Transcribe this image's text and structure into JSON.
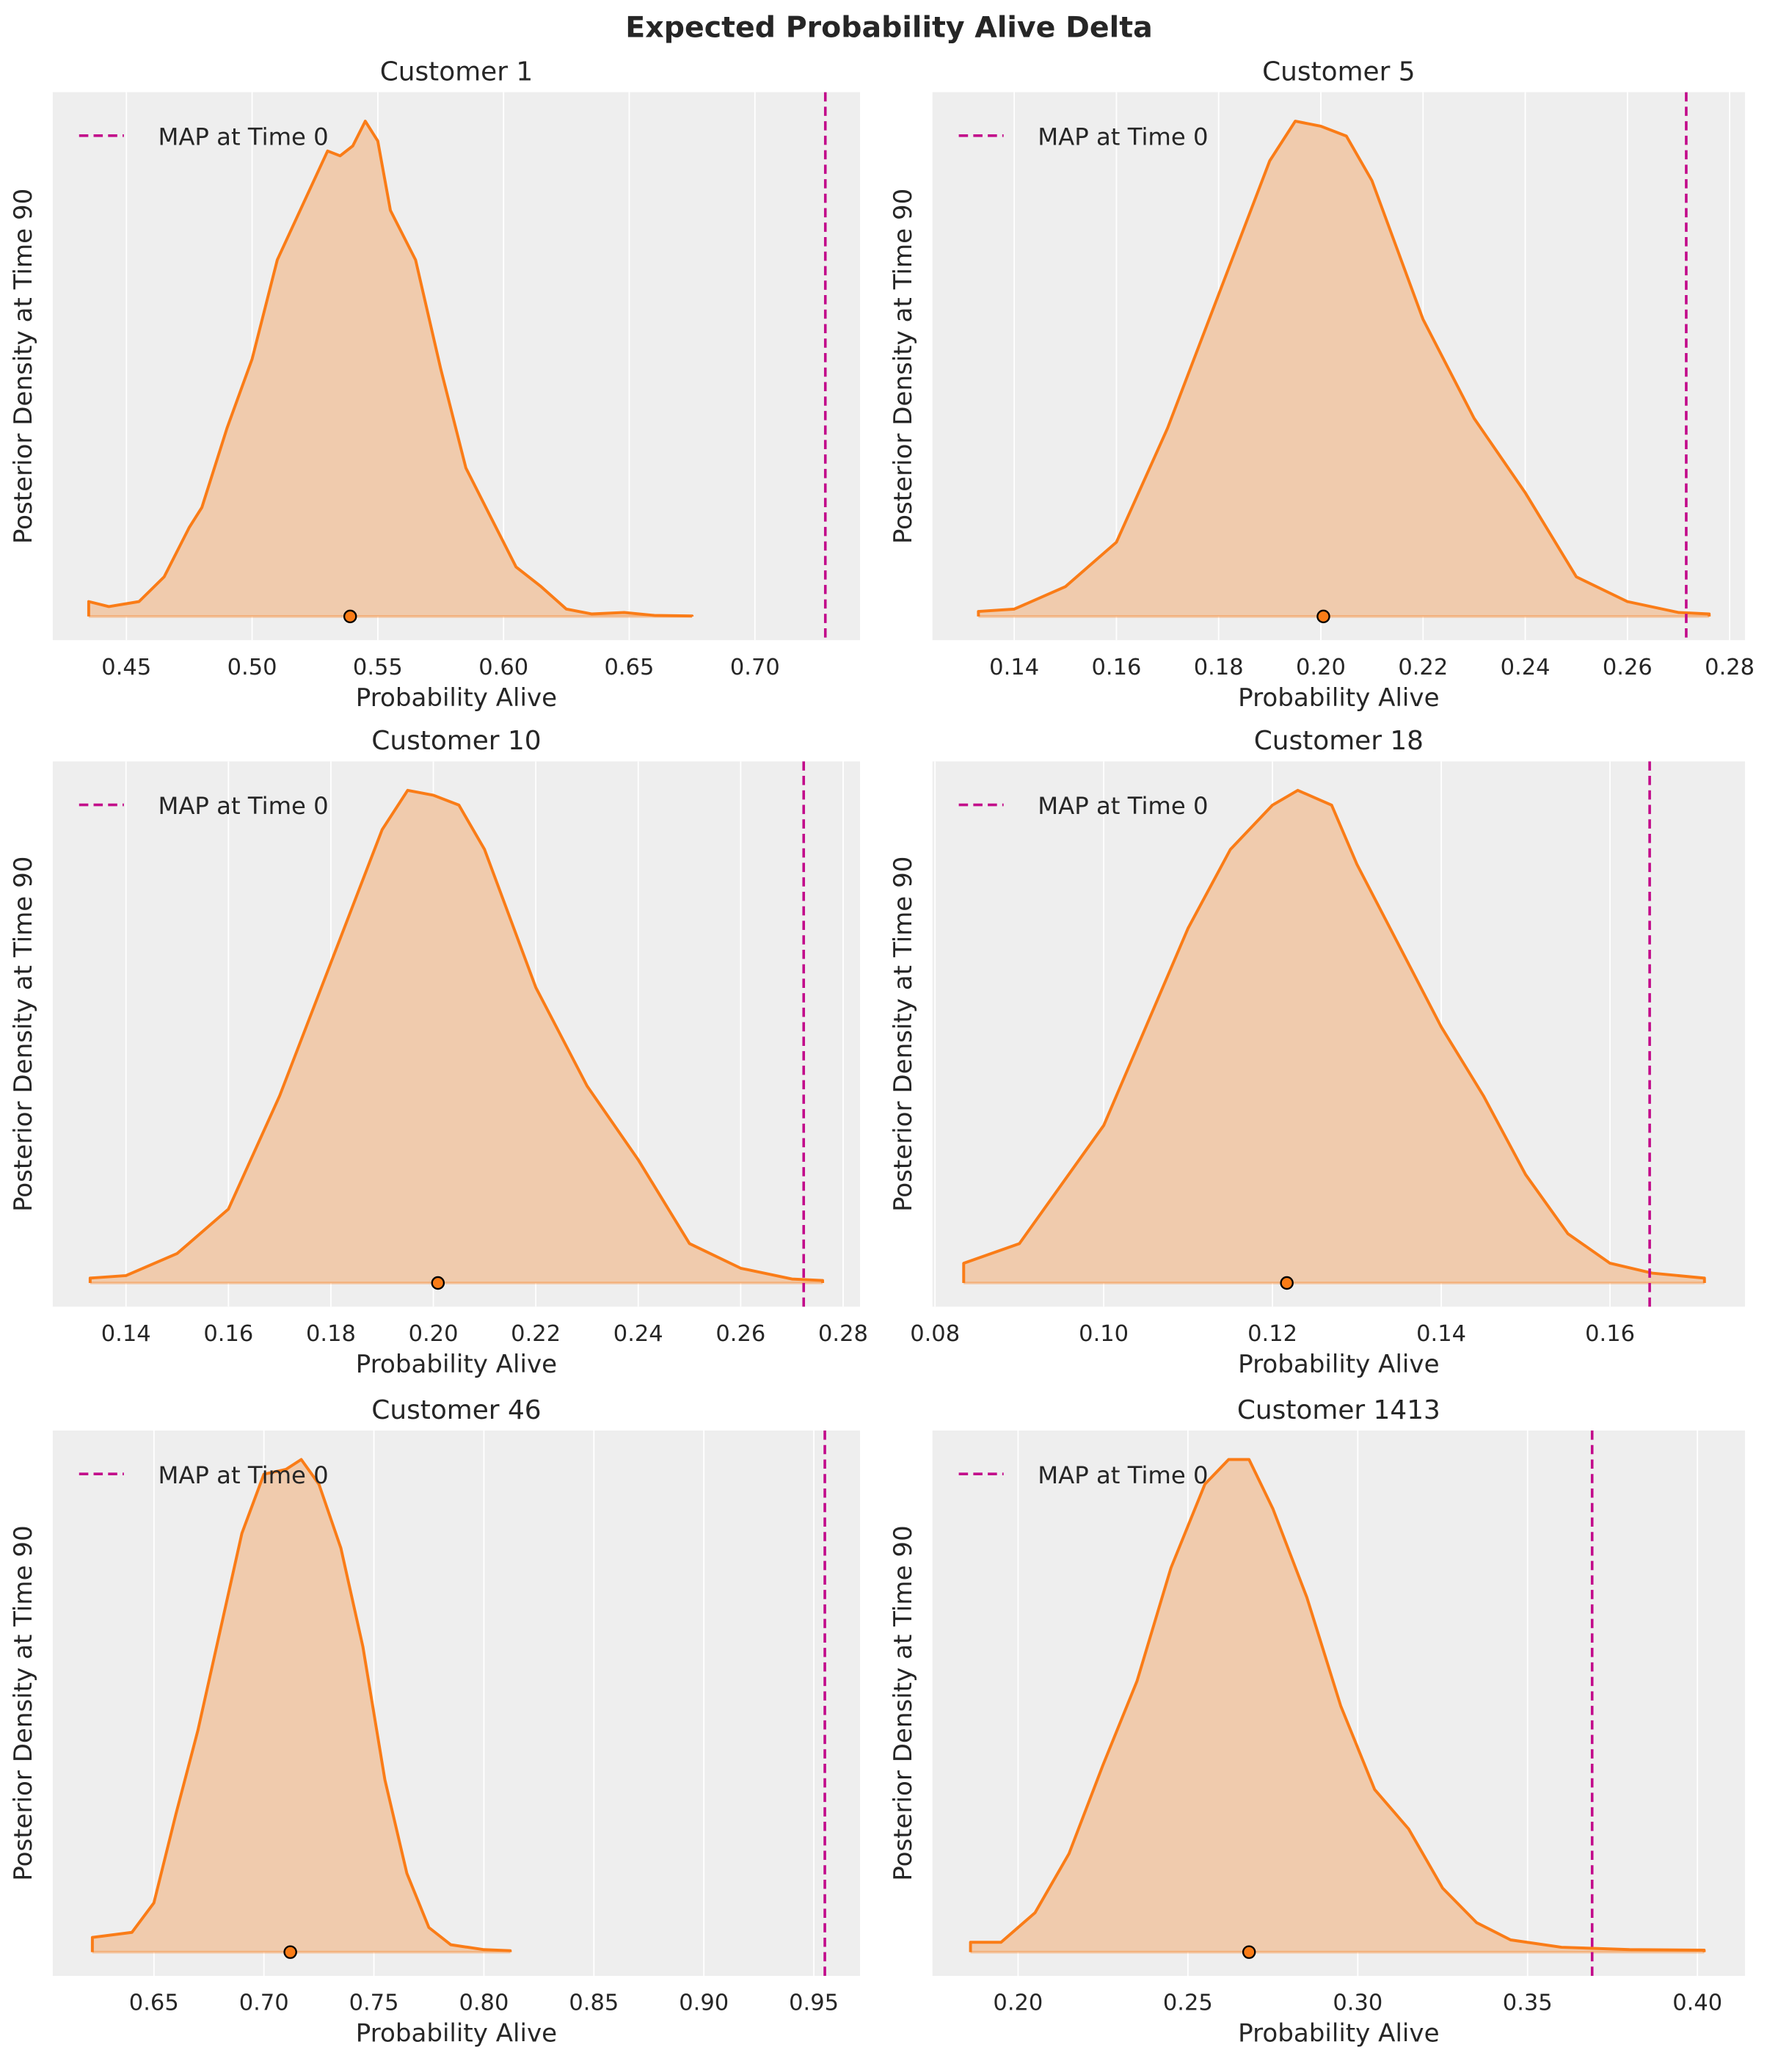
{
  "title": "Expected Probability Alive Delta",
  "colors": {
    "background": "#eeeeee",
    "grid": "#ffffff",
    "kde_line": "#fa7c17",
    "kde_fill": "#f0cbad",
    "map_line": "#c20a8a",
    "point_edge": "#000000"
  },
  "chart_data": [
    {
      "type": "area",
      "title": "Customer 1",
      "xlabel": "Probability Alive",
      "ylabel": "Posterior Density at Time 90",
      "legend": "MAP at Time 0",
      "legend_position": "top-left",
      "grid": true,
      "xlim": [
        0.4207,
        0.7418
      ],
      "xticks": [
        "0.45",
        "0.50",
        "0.55",
        "0.60",
        "0.65",
        "0.70"
      ],
      "map_value": 0.728,
      "point_estimate": 0.539,
      "density": [
        [
          0.435,
          0.03
        ],
        [
          0.443,
          0.02
        ],
        [
          0.455,
          0.03
        ],
        [
          0.465,
          0.08
        ],
        [
          0.475,
          0.18
        ],
        [
          0.48,
          0.22
        ],
        [
          0.49,
          0.38
        ],
        [
          0.5,
          0.52
        ],
        [
          0.51,
          0.72
        ],
        [
          0.52,
          0.83
        ],
        [
          0.53,
          0.94
        ],
        [
          0.535,
          0.93
        ],
        [
          0.54,
          0.95
        ],
        [
          0.545,
          1.0
        ],
        [
          0.55,
          0.96
        ],
        [
          0.555,
          0.82
        ],
        [
          0.565,
          0.72
        ],
        [
          0.575,
          0.5
        ],
        [
          0.585,
          0.3
        ],
        [
          0.595,
          0.2
        ],
        [
          0.605,
          0.1
        ],
        [
          0.615,
          0.06
        ],
        [
          0.625,
          0.015
        ],
        [
          0.635,
          0.005
        ],
        [
          0.648,
          0.008
        ],
        [
          0.66,
          0.002
        ],
        [
          0.675,
          0.001
        ]
      ]
    },
    {
      "type": "area",
      "title": "Customer 5",
      "xlabel": "Probability Alive",
      "ylabel": "Posterior Density at Time 90",
      "legend": "MAP at Time 0",
      "legend_position": "top-left",
      "grid": true,
      "xlim": [
        0.124,
        0.283
      ],
      "xticks": [
        "0.14",
        "0.16",
        "0.18",
        "0.20",
        "0.22",
        "0.24",
        "0.26",
        "0.28"
      ],
      "map_value": 0.2715,
      "point_estimate": 0.2005,
      "density": [
        [
          0.133,
          0.01
        ],
        [
          0.14,
          0.015
        ],
        [
          0.15,
          0.06
        ],
        [
          0.16,
          0.15
        ],
        [
          0.17,
          0.38
        ],
        [
          0.18,
          0.65
        ],
        [
          0.19,
          0.92
        ],
        [
          0.195,
          1.0
        ],
        [
          0.2,
          0.99
        ],
        [
          0.205,
          0.97
        ],
        [
          0.21,
          0.88
        ],
        [
          0.22,
          0.6
        ],
        [
          0.23,
          0.4
        ],
        [
          0.24,
          0.25
        ],
        [
          0.25,
          0.08
        ],
        [
          0.26,
          0.03
        ],
        [
          0.27,
          0.008
        ],
        [
          0.276,
          0.005
        ]
      ]
    },
    {
      "type": "area",
      "title": "Customer 10",
      "xlabel": "Probability Alive",
      "ylabel": "Posterior Density at Time 90",
      "legend": "MAP at Time 0",
      "legend_position": "top-left",
      "grid": true,
      "xlim": [
        0.1257,
        0.2833
      ],
      "xticks": [
        "0.14",
        "0.16",
        "0.18",
        "0.20",
        "0.22",
        "0.24",
        "0.26",
        "0.28"
      ],
      "map_value": 0.2723,
      "point_estimate": 0.2009,
      "density": [
        [
          0.133,
          0.01
        ],
        [
          0.14,
          0.015
        ],
        [
          0.15,
          0.06
        ],
        [
          0.16,
          0.15
        ],
        [
          0.17,
          0.38
        ],
        [
          0.18,
          0.65
        ],
        [
          0.19,
          0.92
        ],
        [
          0.195,
          1.0
        ],
        [
          0.2,
          0.99
        ],
        [
          0.205,
          0.97
        ],
        [
          0.21,
          0.88
        ],
        [
          0.22,
          0.6
        ],
        [
          0.23,
          0.4
        ],
        [
          0.24,
          0.25
        ],
        [
          0.25,
          0.08
        ],
        [
          0.26,
          0.03
        ],
        [
          0.27,
          0.008
        ],
        [
          0.276,
          0.005
        ]
      ]
    },
    {
      "type": "area",
      "title": "Customer 18",
      "xlabel": "Probability Alive",
      "ylabel": "Posterior Density at Time 90",
      "legend": "MAP at Time 0",
      "legend_position": "top-left",
      "grid": true,
      "xlim": [
        0.0797,
        0.176
      ],
      "xticks": [
        "0.08",
        "0.10",
        "0.12",
        "0.14",
        "0.16"
      ],
      "map_value": 0.1647,
      "point_estimate": 0.1217,
      "density": [
        [
          0.0834,
          0.04
        ],
        [
          0.09,
          0.08
        ],
        [
          0.1,
          0.32
        ],
        [
          0.11,
          0.72
        ],
        [
          0.115,
          0.88
        ],
        [
          0.12,
          0.97
        ],
        [
          0.123,
          1.0
        ],
        [
          0.127,
          0.97
        ],
        [
          0.13,
          0.85
        ],
        [
          0.14,
          0.52
        ],
        [
          0.145,
          0.38
        ],
        [
          0.15,
          0.22
        ],
        [
          0.155,
          0.1
        ],
        [
          0.16,
          0.04
        ],
        [
          0.165,
          0.02
        ],
        [
          0.1712,
          0.01
        ]
      ]
    },
    {
      "type": "area",
      "title": "Customer 46",
      "xlabel": "Probability Alive",
      "ylabel": "Posterior Density at Time 90",
      "legend": "MAP at Time 0",
      "legend_position": "top-left",
      "grid": true,
      "xlim": [
        0.604,
        0.971
      ],
      "xticks": [
        "0.65",
        "0.70",
        "0.75",
        "0.80",
        "0.85",
        "0.90",
        "0.95"
      ],
      "map_value": 0.955,
      "point_estimate": 0.712,
      "density": [
        [
          0.622,
          0.03
        ],
        [
          0.64,
          0.04
        ],
        [
          0.65,
          0.1
        ],
        [
          0.66,
          0.28
        ],
        [
          0.67,
          0.45
        ],
        [
          0.68,
          0.65
        ],
        [
          0.69,
          0.85
        ],
        [
          0.7,
          0.97
        ],
        [
          0.71,
          0.98
        ],
        [
          0.717,
          1.0
        ],
        [
          0.725,
          0.95
        ],
        [
          0.735,
          0.82
        ],
        [
          0.745,
          0.62
        ],
        [
          0.755,
          0.35
        ],
        [
          0.765,
          0.16
        ],
        [
          0.775,
          0.05
        ],
        [
          0.785,
          0.015
        ],
        [
          0.8,
          0.005
        ],
        [
          0.812,
          0.003
        ]
      ]
    },
    {
      "type": "area",
      "title": "Customer 1413",
      "xlabel": "Probability Alive",
      "ylabel": "Posterior Density at Time 90",
      "legend": "MAP at Time 0",
      "legend_position": "top-left",
      "grid": true,
      "xlim": [
        0.1748,
        0.414
      ],
      "xticks": [
        "0.20",
        "0.25",
        "0.30",
        "0.35",
        "0.40"
      ],
      "map_value": 0.369,
      "point_estimate": 0.268,
      "density": [
        [
          0.186,
          0.02
        ],
        [
          0.195,
          0.02
        ],
        [
          0.205,
          0.08
        ],
        [
          0.215,
          0.2
        ],
        [
          0.225,
          0.38
        ],
        [
          0.235,
          0.55
        ],
        [
          0.245,
          0.78
        ],
        [
          0.255,
          0.95
        ],
        [
          0.262,
          1.0
        ],
        [
          0.268,
          1.0
        ],
        [
          0.275,
          0.9
        ],
        [
          0.285,
          0.72
        ],
        [
          0.295,
          0.5
        ],
        [
          0.305,
          0.33
        ],
        [
          0.315,
          0.25
        ],
        [
          0.325,
          0.13
        ],
        [
          0.335,
          0.06
        ],
        [
          0.345,
          0.025
        ],
        [
          0.36,
          0.01
        ],
        [
          0.38,
          0.005
        ],
        [
          0.402,
          0.004
        ]
      ]
    }
  ]
}
